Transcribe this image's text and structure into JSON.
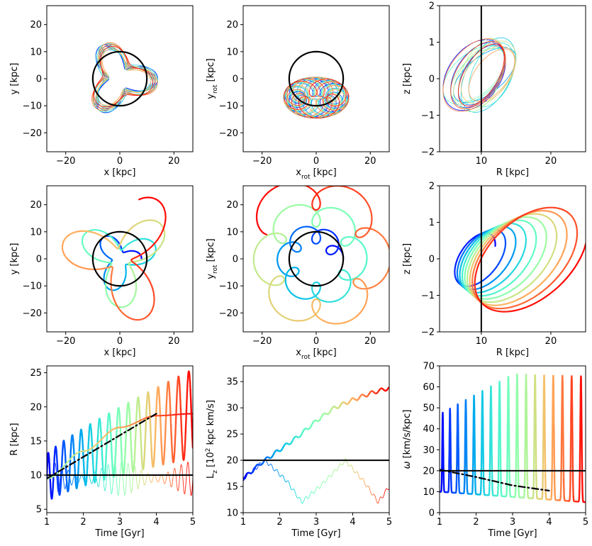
{
  "chart_data": [
    {
      "id": "p1",
      "type": "line",
      "xlabel": "x [kpc]",
      "ylabel": "y [kpc]",
      "xlim": [
        -27,
        27
      ],
      "ylim": [
        -27,
        27
      ],
      "xticks": [
        -20,
        0,
        20
      ],
      "yticks": [
        -20,
        -10,
        0,
        10,
        20
      ],
      "xtick_labels": [
        "−20",
        "0",
        "20"
      ],
      "ytick_labels": [
        "−20",
        "−10",
        "0",
        "10",
        "20"
      ],
      "reference": {
        "kind": "circle",
        "cx": 0,
        "cy": 0,
        "r": 10
      },
      "orbits": {
        "kind": "rosette",
        "count": 15,
        "r_min": 4,
        "r_max": 14,
        "lobes": 3,
        "thin": true
      }
    },
    {
      "id": "p2",
      "type": "line",
      "xlabel": "x_rot [kpc]",
      "ylabel": "y_rot [kpc]",
      "xlim": [
        -27,
        27
      ],
      "ylim": [
        -27,
        27
      ],
      "xticks": [
        -20,
        0,
        20
      ],
      "yticks": [
        -20,
        -10,
        0,
        10,
        20
      ],
      "xtick_labels": [
        "−20",
        "0",
        "20"
      ],
      "ytick_labels": [
        "−20",
        "−10",
        "0",
        "10",
        "20"
      ],
      "reference": {
        "kind": "circle",
        "cx": 0,
        "cy": 0,
        "r": 10
      },
      "orbits": {
        "kind": "loops",
        "count": 15,
        "center": [
          0,
          -7
        ],
        "spread": [
          9,
          4
        ],
        "loop_r": 4,
        "thin": true
      }
    },
    {
      "id": "p3",
      "type": "line",
      "xlabel": "R [kpc]",
      "ylabel": "z [kpc]",
      "xlim": [
        4,
        25
      ],
      "ylim": [
        -2,
        2
      ],
      "xticks": [
        10,
        20
      ],
      "yticks": [
        -2,
        -1,
        0,
        1,
        2
      ],
      "xtick_labels": [
        "10",
        "20"
      ],
      "ytick_labels": [
        "−2",
        "−1",
        "0",
        "1",
        "2"
      ],
      "reference": {
        "kind": "vline",
        "x": 10
      },
      "orbits": {
        "kind": "ellipses",
        "count": 15,
        "center": [
          9,
          0.1
        ],
        "rx": 4.5,
        "rz": 0.9,
        "thin": true
      }
    },
    {
      "id": "p4",
      "type": "line",
      "xlabel": "x [kpc]",
      "ylabel": "y [kpc]",
      "xlim": [
        -27,
        27
      ],
      "ylim": [
        -27,
        27
      ],
      "xticks": [
        -20,
        0,
        20
      ],
      "yticks": [
        -20,
        -10,
        0,
        10,
        20
      ],
      "xtick_labels": [
        "−20",
        "0",
        "20"
      ],
      "ytick_labels": [
        "−20",
        "−10",
        "0",
        "10",
        "20"
      ],
      "reference": {
        "kind": "circle",
        "cx": 0,
        "cy": 0,
        "r": 10
      },
      "orbits": {
        "kind": "spiral-rosette",
        "r_start": 6,
        "r_end": 24,
        "lobes": 3,
        "thin": false
      }
    },
    {
      "id": "p5",
      "type": "line",
      "xlabel": "x_rot [kpc]",
      "ylabel": "y_rot [kpc]",
      "xlim": [
        -27,
        27
      ],
      "ylim": [
        -27,
        27
      ],
      "xticks": [
        -20,
        0,
        20
      ],
      "yticks": [
        -20,
        -10,
        0,
        10,
        20
      ],
      "xtick_labels": [
        "−20",
        "0",
        "20"
      ],
      "ytick_labels": [
        "−20",
        "−10",
        "0",
        "10",
        "20"
      ],
      "reference": {
        "kind": "circle",
        "cx": 0,
        "cy": 0,
        "r": 10
      },
      "orbits": {
        "kind": "spiral-loops",
        "r_start": 7,
        "r_end": 25,
        "thin": false
      }
    },
    {
      "id": "p6",
      "type": "line",
      "xlabel": "R [kpc]",
      "ylabel": "z [kpc]",
      "xlim": [
        4,
        25
      ],
      "ylim": [
        -2,
        2
      ],
      "xticks": [
        10,
        20
      ],
      "yticks": [
        -2,
        -1,
        0,
        1,
        2
      ],
      "xtick_labels": [
        "10",
        "20"
      ],
      "ytick_labels": [
        "−2",
        "−1",
        "0",
        "1",
        "2"
      ],
      "reference": {
        "kind": "vline",
        "x": 10
      },
      "orbits": {
        "kind": "growing-ellipses",
        "r_start": 9,
        "r_end": 20,
        "thin": false
      }
    },
    {
      "id": "p7",
      "type": "line",
      "xlabel": "Time [Gyr]",
      "ylabel": "R [kpc]",
      "xlim": [
        1,
        5
      ],
      "ylim": [
        4.5,
        26
      ],
      "xticks": [
        1,
        2,
        3,
        4,
        5
      ],
      "yticks": [
        5,
        10,
        15,
        20,
        25
      ],
      "xtick_labels": [
        "1",
        "2",
        "3",
        "4",
        "5"
      ],
      "ytick_labels": [
        "5",
        "10",
        "15",
        "20",
        "25"
      ],
      "reference": {
        "kind": "hline",
        "y": 10
      },
      "thick_series": {
        "kind": "oscillation",
        "mean_start": 9.5,
        "mean_end": 19,
        "amp_start": 3.5,
        "amp_end": 6.5,
        "periods": 17
      },
      "thin_series": {
        "kind": "oscillation",
        "mean_start": 9.5,
        "mean_end": 9.5,
        "amp_start": 2.5,
        "amp_end": 2.5,
        "periods": 22
      },
      "smooth_series": [
        {
          "x": 1,
          "y": 9.5
        },
        {
          "x": 2,
          "y": 13.5
        },
        {
          "x": 3,
          "y": 17
        },
        {
          "x": 4,
          "y": 18.7
        },
        {
          "x": 5,
          "y": 19
        }
      ],
      "dashdot_series": [
        {
          "x": 1,
          "y": 9.5
        },
        {
          "x": 4,
          "y": 19
        }
      ]
    },
    {
      "id": "p8",
      "type": "line",
      "xlabel": "Time [Gyr]",
      "ylabel": "L_z [10^2 kpc km/s]",
      "xlim": [
        1,
        5
      ],
      "ylim": [
        10,
        38
      ],
      "xticks": [
        1,
        2,
        3,
        4,
        5
      ],
      "yticks": [
        10,
        15,
        20,
        25,
        30,
        35
      ],
      "xtick_labels": [
        "1",
        "2",
        "3",
        "4",
        "5"
      ],
      "ytick_labels": [
        "10",
        "15",
        "20",
        "25",
        "30",
        "35"
      ],
      "reference": {
        "kind": "hline",
        "y": 20
      },
      "thick_series": [
        {
          "x": 1,
          "y": 16.5
        },
        {
          "x": 1.5,
          "y": 19.5
        },
        {
          "x": 2,
          "y": 22
        },
        {
          "x": 2.5,
          "y": 24.5
        },
        {
          "x": 3,
          "y": 27.5
        },
        {
          "x": 3.5,
          "y": 30
        },
        {
          "x": 4,
          "y": 31.5
        },
        {
          "x": 4.5,
          "y": 32.8
        },
        {
          "x": 5,
          "y": 33.8
        }
      ],
      "thin_series": [
        {
          "x": 1,
          "y": 16.5
        },
        {
          "x": 1.6,
          "y": 20
        },
        {
          "x": 2.2,
          "y": 16
        },
        {
          "x": 2.6,
          "y": 12
        },
        {
          "x": 3.1,
          "y": 15
        },
        {
          "x": 3.8,
          "y": 20
        },
        {
          "x": 4.3,
          "y": 16
        },
        {
          "x": 4.7,
          "y": 12
        },
        {
          "x": 5,
          "y": 15
        }
      ]
    },
    {
      "id": "p9",
      "type": "line",
      "xlabel": "Time [Gyr]",
      "ylabel": "ω [km/s/kpc]",
      "xlim": [
        1,
        5
      ],
      "ylim": [
        0,
        70
      ],
      "xticks": [
        1,
        2,
        3,
        4,
        5
      ],
      "yticks": [
        0,
        10,
        20,
        30,
        40,
        50,
        60,
        70
      ],
      "xtick_labels": [
        "1",
        "2",
        "3",
        "4",
        "5"
      ],
      "ytick_labels": [
        "0",
        "10",
        "20",
        "30",
        "40",
        "50",
        "60",
        "70"
      ],
      "reference": {
        "kind": "hline",
        "y": 20
      },
      "thick_series": {
        "kind": "spikes",
        "base_start": 10,
        "base_end": 5,
        "peak_start": 47,
        "peak_mid": 66,
        "peak_end": 65,
        "periods": 17
      },
      "dashdot_series": [
        {
          "x": 1,
          "y": 20.5
        },
        {
          "x": 2,
          "y": 17
        },
        {
          "x": 3,
          "y": 13
        },
        {
          "x": 4,
          "y": 10.5
        }
      ]
    }
  ]
}
